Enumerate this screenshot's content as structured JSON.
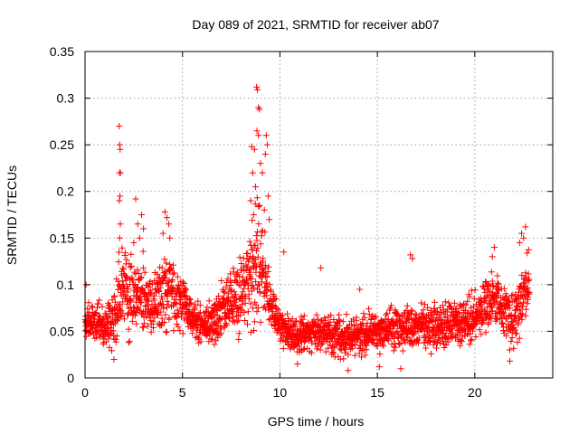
{
  "chart_data": {
    "type": "scatter",
    "title": "Day 089 of 2021, SRMTID for receiver ab07",
    "xlabel": "GPS time / hours",
    "ylabel": "SRMTID / TECUs",
    "xlim": [
      0,
      24
    ],
    "ylim": [
      0,
      0.35
    ],
    "x_ticks": [
      0,
      5,
      10,
      15,
      20
    ],
    "x_tick_labels": [
      "0",
      "5",
      "10",
      "15",
      "20"
    ],
    "y_ticks": [
      0,
      0.05,
      0.1,
      0.15,
      0.2,
      0.25,
      0.3,
      0.35
    ],
    "y_tick_labels": [
      "0",
      "0.05",
      "0.1",
      "0.15",
      "0.2",
      "0.25",
      "0.3",
      "0.35"
    ],
    "grid": true,
    "marker": "+",
    "series_color": "#ff0000",
    "envelope": {
      "x": [
        0,
        0.5,
        1,
        1.5,
        1.8,
        2.0,
        2.5,
        3,
        3.5,
        4,
        4.3,
        4.6,
        5,
        5.5,
        6,
        6.5,
        7,
        7.5,
        8,
        8.5,
        8.8,
        9.1,
        9.5,
        10,
        11,
        12,
        13,
        14,
        15,
        16,
        17,
        18,
        19,
        20,
        20.5,
        21,
        21.5,
        22,
        22.5,
        22.8
      ],
      "mid": [
        0.06,
        0.06,
        0.055,
        0.06,
        0.09,
        0.1,
        0.09,
        0.085,
        0.08,
        0.09,
        0.095,
        0.08,
        0.08,
        0.065,
        0.055,
        0.06,
        0.07,
        0.085,
        0.09,
        0.11,
        0.14,
        0.12,
        0.075,
        0.055,
        0.045,
        0.05,
        0.045,
        0.045,
        0.05,
        0.055,
        0.055,
        0.055,
        0.06,
        0.065,
        0.08,
        0.085,
        0.07,
        0.06,
        0.09,
        0.1
      ],
      "spread": [
        0.015,
        0.018,
        0.02,
        0.03,
        0.04,
        0.045,
        0.04,
        0.035,
        0.035,
        0.04,
        0.045,
        0.035,
        0.03,
        0.02,
        0.02,
        0.025,
        0.03,
        0.03,
        0.035,
        0.05,
        0.07,
        0.06,
        0.03,
        0.02,
        0.018,
        0.02,
        0.02,
        0.02,
        0.02,
        0.022,
        0.022,
        0.022,
        0.025,
        0.028,
        0.03,
        0.03,
        0.028,
        0.03,
        0.035,
        0.035
      ]
    },
    "spikes": [
      {
        "x": 1.75,
        "y": 0.27
      },
      {
        "x": 1.78,
        "y": 0.25
      },
      {
        "x": 1.8,
        "y": 0.245
      },
      {
        "x": 1.77,
        "y": 0.22
      },
      {
        "x": 1.82,
        "y": 0.22
      },
      {
        "x": 1.79,
        "y": 0.195
      },
      {
        "x": 1.76,
        "y": 0.19
      },
      {
        "x": 1.81,
        "y": 0.165
      },
      {
        "x": 1.78,
        "y": 0.15
      },
      {
        "x": 2.6,
        "y": 0.192
      },
      {
        "x": 2.7,
        "y": 0.165
      },
      {
        "x": 2.9,
        "y": 0.175
      },
      {
        "x": 2.8,
        "y": 0.15
      },
      {
        "x": 3.0,
        "y": 0.16
      },
      {
        "x": 2.5,
        "y": 0.145
      },
      {
        "x": 4.1,
        "y": 0.178
      },
      {
        "x": 4.2,
        "y": 0.172
      },
      {
        "x": 4.3,
        "y": 0.165
      },
      {
        "x": 4.0,
        "y": 0.155
      },
      {
        "x": 4.35,
        "y": 0.15
      },
      {
        "x": 8.8,
        "y": 0.312
      },
      {
        "x": 8.85,
        "y": 0.309
      },
      {
        "x": 8.9,
        "y": 0.29
      },
      {
        "x": 8.95,
        "y": 0.288
      },
      {
        "x": 8.82,
        "y": 0.265
      },
      {
        "x": 8.9,
        "y": 0.26
      },
      {
        "x": 9.3,
        "y": 0.26
      },
      {
        "x": 9.35,
        "y": 0.25
      },
      {
        "x": 8.55,
        "y": 0.248
      },
      {
        "x": 8.7,
        "y": 0.245
      },
      {
        "x": 9.0,
        "y": 0.23
      },
      {
        "x": 9.25,
        "y": 0.24
      },
      {
        "x": 8.6,
        "y": 0.22
      },
      {
        "x": 9.1,
        "y": 0.22
      },
      {
        "x": 8.75,
        "y": 0.205
      },
      {
        "x": 9.4,
        "y": 0.195
      },
      {
        "x": 8.5,
        "y": 0.19
      },
      {
        "x": 9.2,
        "y": 0.18
      },
      {
        "x": 8.65,
        "y": 0.175
      },
      {
        "x": 9.45,
        "y": 0.17
      },
      {
        "x": 22.6,
        "y": 0.162
      },
      {
        "x": 22.4,
        "y": 0.155
      },
      {
        "x": 22.5,
        "y": 0.15
      },
      {
        "x": 22.3,
        "y": 0.145
      },
      {
        "x": 21.0,
        "y": 0.14
      },
      {
        "x": 20.9,
        "y": 0.13
      },
      {
        "x": 16.7,
        "y": 0.132
      },
      {
        "x": 16.8,
        "y": 0.128
      },
      {
        "x": 0.05,
        "y": 0.1
      },
      {
        "x": 10.2,
        "y": 0.135
      },
      {
        "x": 12.1,
        "y": 0.118
      },
      {
        "x": 14.1,
        "y": 0.095
      },
      {
        "x": 15.1,
        "y": 0.012
      },
      {
        "x": 16.2,
        "y": 0.01
      },
      {
        "x": 13.5,
        "y": 0.008
      },
      {
        "x": 21.8,
        "y": 0.018
      },
      {
        "x": 10.9,
        "y": 0.015
      }
    ],
    "point_count": 2400
  }
}
